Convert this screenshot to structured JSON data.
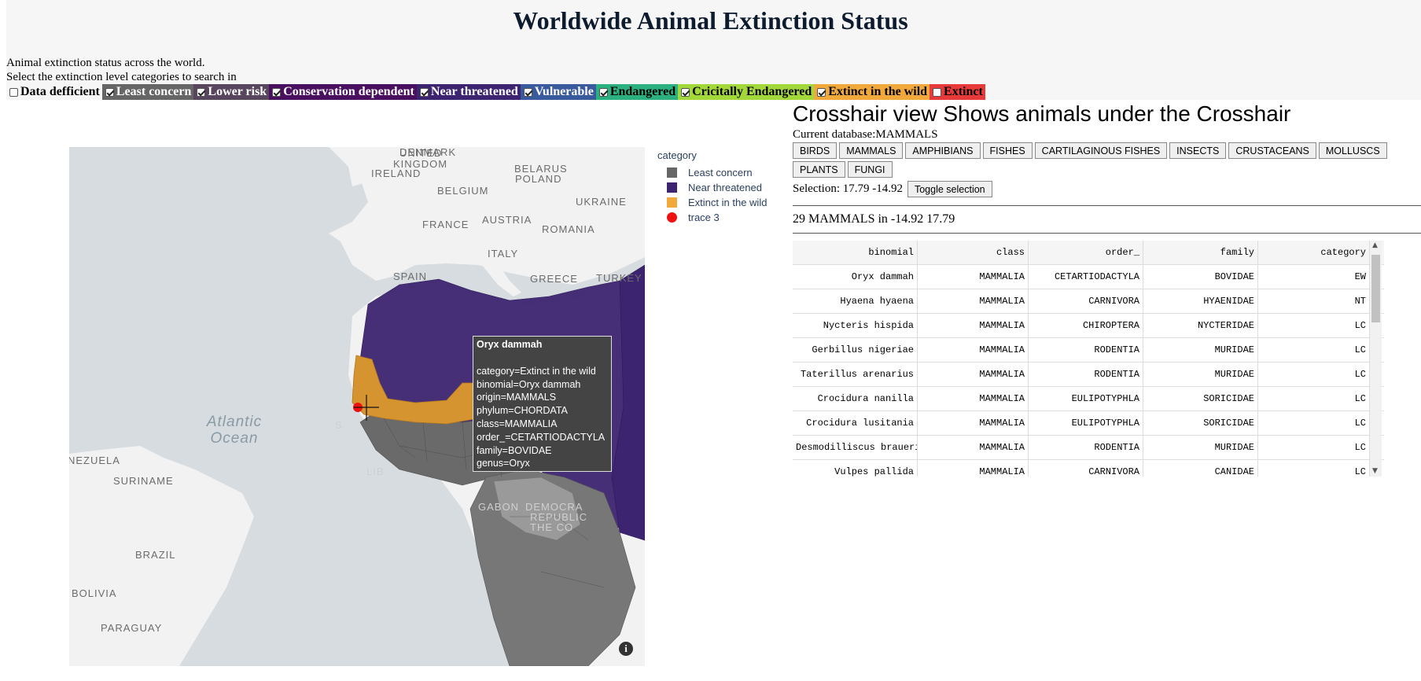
{
  "header": {
    "title": "Worldwide Animal Extinction Status",
    "description": "Animal extinction status across the world.",
    "prompt": "Select the extinction level categories to search in"
  },
  "categories": [
    {
      "label": "Data defficient",
      "checked": false,
      "bg": "#f6f6f6",
      "fg": "#000000"
    },
    {
      "label": "Least concern",
      "checked": true,
      "bg": "#666666",
      "fg": "#ffffff"
    },
    {
      "label": "Lower risk",
      "checked": true,
      "bg": "#58465e",
      "fg": "#ffffff"
    },
    {
      "label": "Conservation dependent",
      "checked": true,
      "bg": "#4a1060",
      "fg": "#ffffff"
    },
    {
      "label": "Near threatened",
      "checked": true,
      "bg": "#3d2470",
      "fg": "#ffffff"
    },
    {
      "label": "Vulnerable",
      "checked": true,
      "bg": "#3a5a9e",
      "fg": "#ffffff"
    },
    {
      "label": "Endangered",
      "checked": true,
      "bg": "#2bb07f",
      "fg": "#000000"
    },
    {
      "label": "Cricitally Endangered",
      "checked": true,
      "bg": "#a3d83a",
      "fg": "#000000"
    },
    {
      "label": "Extinct in the wild",
      "checked": true,
      "bg": "#f2a93b",
      "fg": "#000000"
    },
    {
      "label": "Extinct",
      "checked": false,
      "bg": "#e83a3a",
      "fg": "#000000"
    }
  ],
  "map": {
    "labels": {
      "united_kingdom_1": "UNITED",
      "united_kingdom_2": "KINGDOM",
      "denmark": "DENMARK",
      "ireland": "IRELAND",
      "belarus": "BELARUS",
      "poland": "POLAND",
      "belgium": "BELGIUM",
      "ukraine": "UKRAINE",
      "france": "FRANCE",
      "austria": "AUSTRIA",
      "romania": "ROMANIA",
      "italy": "ITALY",
      "spain": "SPAIN",
      "greece": "GREECE",
      "turkey": "TURKEY",
      "venezuela": "NEZUELA",
      "suriname": "SURINAME",
      "brazil": "BRAZIL",
      "bolivia": "BOLIVIA",
      "paraguay": "PARAGUAY",
      "gabon": "GABON",
      "democratic": "DEMOCRA",
      "republic": "REPUBLIC",
      "congo": "THE CO",
      "lib": "LIB",
      "s": "S"
    },
    "ocean": "Atlantic Ocean",
    "info_icon": "i"
  },
  "tooltip": {
    "title": "Oryx dammah",
    "lines": [
      "category=Extinct in the wild",
      "binomial=Oryx dammah",
      "origin=MAMMALS",
      "phylum=CHORDATA",
      "class=MAMMALIA",
      "order_=CETARTIODACTYLA",
      "family=BOVIDAE",
      "genus=Oryx"
    ]
  },
  "legend": {
    "title": "category",
    "items": [
      {
        "label": "Least concern",
        "color": "#666666",
        "shape": "square"
      },
      {
        "label": "Near threatened",
        "color": "#3d2470",
        "shape": "square"
      },
      {
        "label": "Extinct in the wild",
        "color": "#f2a93b",
        "shape": "square"
      },
      {
        "label": "trace 3",
        "color": "#ee1111",
        "shape": "circle"
      }
    ]
  },
  "panel": {
    "title": "Crosshair view Shows animals under the Crosshair",
    "database": "Current database:MAMMALS",
    "db_buttons": [
      "BIRDS",
      "MAMMALS",
      "AMPHIBIANS",
      "FISHES",
      "CARTILAGINOUS FISHES",
      "INSECTS",
      "CRUSTACEANS",
      "MOLLUSCS",
      "PLANTS",
      "FUNGI"
    ],
    "selection": "Selection: 17.79 -14.92",
    "toggle_label": "Toggle selection",
    "count": "29 MAMMALS in -14.92 17.79"
  },
  "table": {
    "columns": [
      "binomial",
      "class",
      "order_",
      "family",
      "category"
    ],
    "rows": [
      [
        "Oryx dammah",
        "MAMMALIA",
        "CETARTIODACTYLA",
        "BOVIDAE",
        "EW"
      ],
      [
        "Hyaena hyaena",
        "MAMMALIA",
        "CARNIVORA",
        "HYAENIDAE",
        "NT"
      ],
      [
        "Nycteris hispida",
        "MAMMALIA",
        "CHIROPTERA",
        "NYCTERIDAE",
        "LC"
      ],
      [
        "Gerbillus nigeriae",
        "MAMMALIA",
        "RODENTIA",
        "MURIDAE",
        "LC"
      ],
      [
        "Taterillus arenarius",
        "MAMMALIA",
        "RODENTIA",
        "MURIDAE",
        "LC"
      ],
      [
        "Crocidura nanilla",
        "MAMMALIA",
        "EULIPOTYPHLA",
        "SORICIDAE",
        "LC"
      ],
      [
        "Crocidura lusitania",
        "MAMMALIA",
        "EULIPOTYPHLA",
        "SORICIDAE",
        "LC"
      ],
      [
        "Desmodilliscus braueri",
        "MAMMALIA",
        "RODENTIA",
        "MURIDAE",
        "LC"
      ],
      [
        "Vulpes pallida",
        "MAMMALIA",
        "CARNIVORA",
        "CANIDAE",
        "LC"
      ]
    ]
  }
}
